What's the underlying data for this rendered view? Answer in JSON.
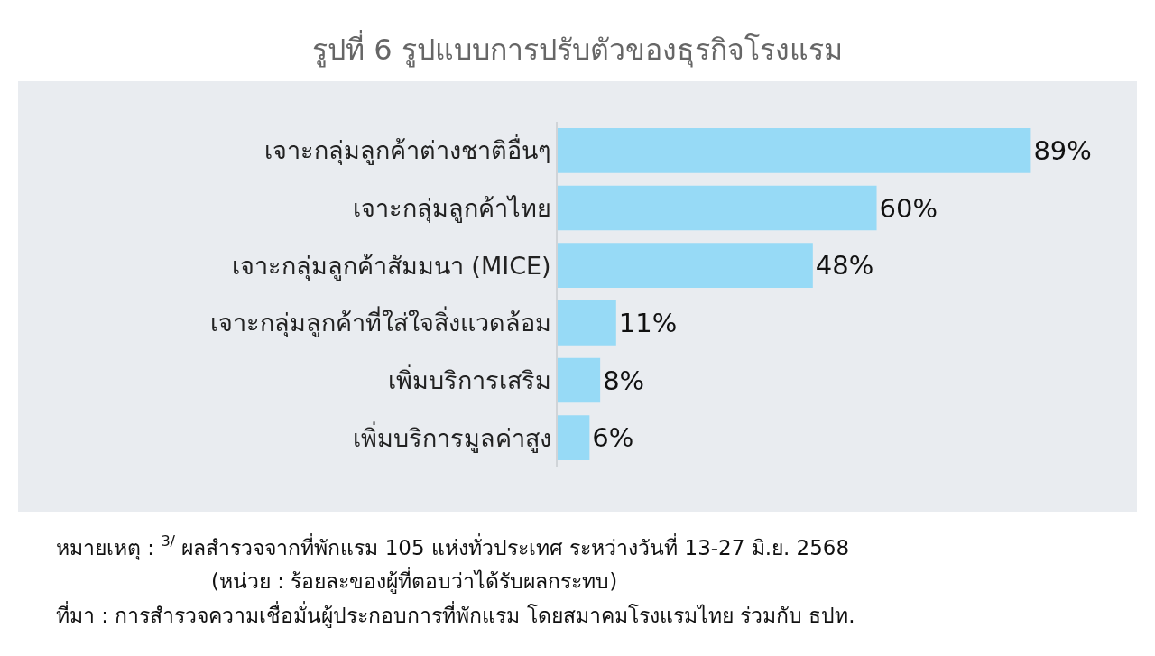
{
  "chart_data": {
    "type": "bar",
    "orientation": "horizontal",
    "title": "รูปที่ 6 รูปแบบการปรับตัวของธุรกิจโรงแรม",
    "categories": [
      "เจาะกลุ่มลูกค้าต่างชาติอื่นๆ",
      "เจาะกลุ่มลูกค้าไทย",
      "เจาะกลุ่มลูกค้าสัมมนา (MICE)",
      "เจาะกลุ่มลูกค้าที่ใส่ใจสิ่งแวดล้อม",
      "เพิ่มบริการเสริม",
      "เพิ่มบริการมูลค่าสูง"
    ],
    "values": [
      89,
      60,
      48,
      11,
      8,
      6
    ],
    "value_labels": [
      "89%",
      "60%",
      "48%",
      "11%",
      "8%",
      "6%"
    ],
    "color": "#97daf6",
    "legend": false,
    "annotations": [
      "หมายเหตุ : $^{3/}$ ผลสำรวจจากที่พักแรม 105 แห่งทั่วประเทศ ระหว่างวันที่ 13-27 มิ.ย. 2568",
      "(หน่วย : ร้อยละของผู้ที่ตอบว่าได้รับผลกระทบ)",
      "ที่มา : การสำรวจความเชื่อมั่นผู้ประกอบการที่พักแรม โดยสมาคมโรงแรมไทย ร่วมกับ ธปท."
    ]
  }
}
